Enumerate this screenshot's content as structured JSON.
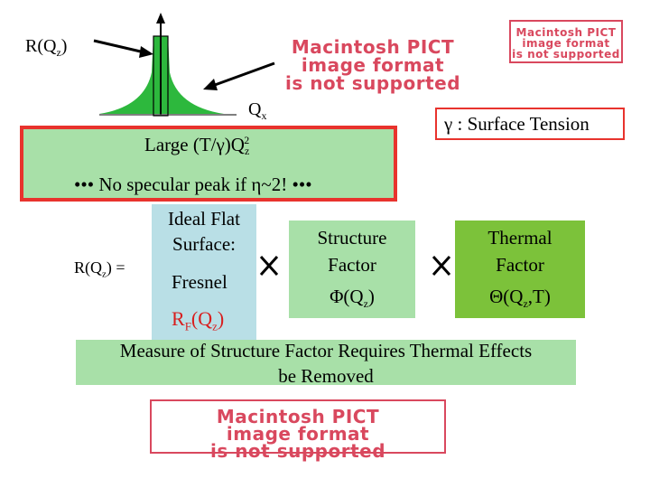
{
  "colors": {
    "peak_green": "#2db83d",
    "green_box": "#a8e0a8",
    "red_border": "#e8332d",
    "blue_box": "#b9dfe6",
    "thermal_green": "#7cc23a",
    "pict_red": "#d9485e"
  },
  "peak_figure": {
    "r_label": "R(Q",
    "r_sub": "z",
    "r_close": ")",
    "qx_label": "Q",
    "qx_sub": "x"
  },
  "pict_placeholder": [
    "Macintosh PICT",
    "image format",
    "is not supported"
  ],
  "gamma_box": {
    "symbol": "γ",
    "text": " : Surface Tension"
  },
  "large_box": {
    "text": "Large (T/γ)Q",
    "sub": "z",
    "sup": "2"
  },
  "no_specular": {
    "bullets_left": "•••",
    "text": " No specular peak if η~2! ",
    "bullets_right": "•••"
  },
  "equation": {
    "lhs": "R(Q",
    "lhs_sub": "z",
    "lhs_close": ") =",
    "ideal_line1": "Ideal Flat",
    "ideal_line2": "Surface:",
    "fresnel": "Fresnel",
    "rf_main": "R",
    "rf_sub": "F",
    "rf_arg": "(Q",
    "rf_arg_sub": "z",
    "rf_close": ")",
    "times_symbol": "×",
    "structure_line1": "Structure",
    "structure_line2": "Factor",
    "phi": "Φ(Q",
    "phi_sub": "z",
    "phi_close": ")",
    "thermal_line1": "Thermal",
    "thermal_line2": "Factor",
    "theta": "Θ(Q",
    "theta_sub": "z",
    "theta_close": ",T)"
  },
  "measure": {
    "line1": "Measure of Structure Factor Requires Thermal Effects",
    "line2": "be Removed"
  }
}
